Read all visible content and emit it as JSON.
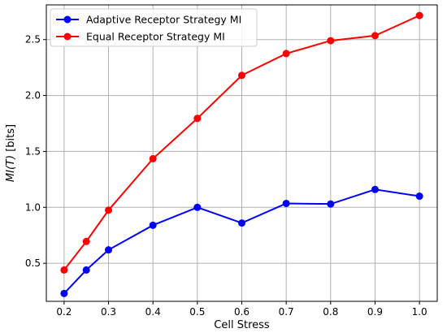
{
  "chart_data": {
    "type": "line",
    "xlabel": "Cell Stress",
    "ylabel": "MI(T) [bits]",
    "x": [
      0.2,
      0.25,
      0.3,
      0.4,
      0.5,
      0.6,
      0.7,
      0.8,
      0.9,
      1.0
    ],
    "xlim": [
      0.16,
      1.04
    ],
    "ylim": [
      0.16,
      2.81
    ],
    "xticks": [
      "0.2",
      "0.3",
      "0.4",
      "0.5",
      "0.6",
      "0.7",
      "0.8",
      "0.9",
      "1.0"
    ],
    "yticks": [
      "0.5",
      "1.0",
      "1.5",
      "2.0",
      "2.5"
    ],
    "grid": true,
    "legend_position": "top-left",
    "series": [
      {
        "name": "Adaptive Receptor Strategy MI",
        "color": "#0000ff",
        "values": [
          0.23,
          0.44,
          0.62,
          0.84,
          1.0,
          0.86,
          1.035,
          1.03,
          1.16,
          1.1
        ]
      },
      {
        "name": "Equal Receptor Strategy MI",
        "color": "#ff0000",
        "values": [
          0.44,
          0.695,
          0.975,
          1.435,
          1.795,
          2.18,
          2.375,
          2.49,
          2.535,
          2.715
        ]
      }
    ]
  }
}
